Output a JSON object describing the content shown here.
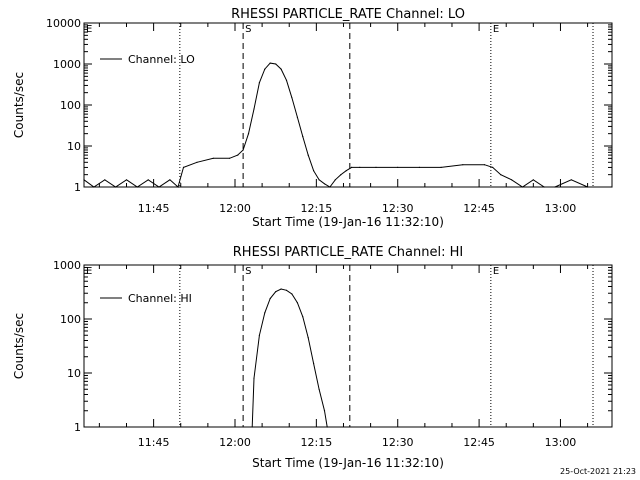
{
  "footer_timestamp": "25-Oct-2021 21:23",
  "chart_data": [
    {
      "type": "line",
      "title": "RHESSI PARTICLE_RATE Channel: LO",
      "xlabel": "Start Time (19-Jan-16 11:32:10)",
      "ylabel": "Counts/sec",
      "yscale": "log",
      "xlim": [
        "11:32:10",
        "13:09:30"
      ],
      "ylim": [
        1,
        10000
      ],
      "x_ticks": [
        "11:45",
        "12:00",
        "12:15",
        "12:30",
        "12:45",
        "13:00"
      ],
      "y_ticks": [
        "1",
        "10",
        "100",
        "1000",
        "10000"
      ],
      "legend": {
        "label": "Channel: LO",
        "position": "top-left"
      },
      "markers": [
        {
          "label": "E",
          "time": "11:32:10",
          "style": "dotted"
        },
        {
          "label": "",
          "time": "11:49:50",
          "style": "dotted"
        },
        {
          "label": "S",
          "time": "12:01:30",
          "style": "dashed"
        },
        {
          "label": "",
          "time": "12:21:10",
          "style": "dashed"
        },
        {
          "label": "E",
          "time": "12:47:10",
          "style": "dotted"
        },
        {
          "label": "",
          "time": "13:06:00",
          "style": "dotted"
        }
      ],
      "series": [
        {
          "name": "Channel: LO",
          "x": [
            "11:32:10",
            "11:34:00",
            "11:36:00",
            "11:38:00",
            "11:40:00",
            "11:42:00",
            "11:44:00",
            "11:46:00",
            "11:48:00",
            "11:49:30",
            "11:50:30",
            "11:53:00",
            "11:56:00",
            "11:59:00",
            "12:00:30",
            "12:01:30",
            "12:02:30",
            "12:03:30",
            "12:04:30",
            "12:05:30",
            "12:06:30",
            "12:07:30",
            "12:08:30",
            "12:09:30",
            "12:10:30",
            "12:11:30",
            "12:12:30",
            "12:13:30",
            "12:14:30",
            "12:15:30",
            "12:16:30",
            "12:17:30",
            "12:18:30",
            "12:19:30",
            "12:20:30",
            "12:21:30",
            "12:23:00",
            "12:26:00",
            "12:30:00",
            "12:34:00",
            "12:38:00",
            "12:42:00",
            "12:46:00",
            "12:47:30",
            "12:49:00",
            "12:51:00",
            "12:53:00",
            "12:55:00",
            "12:57:00",
            "12:59:00",
            "13:02:00",
            "13:05:00",
            "13:09:30"
          ],
          "values": [
            1.5,
            1,
            1.5,
            1,
            1.5,
            1,
            1.5,
            1,
            1.5,
            1,
            3,
            4,
            5,
            5,
            6,
            8,
            20,
            80,
            350,
            750,
            1050,
            1000,
            750,
            400,
            150,
            50,
            17,
            6,
            2.5,
            1.5,
            1.2,
            1,
            1.5,
            2,
            2.5,
            3,
            3,
            3,
            3,
            3,
            3,
            3.5,
            3.5,
            3,
            2,
            1.5,
            1,
            1.5,
            1,
            1,
            1.5,
            1,
            1
          ]
        }
      ]
    },
    {
      "type": "line",
      "title": "RHESSI PARTICLE_RATE Channel: HI",
      "xlabel": "Start Time (19-Jan-16 11:32:10)",
      "ylabel": "Counts/sec",
      "yscale": "log",
      "xlim": [
        "11:32:10",
        "13:09:30"
      ],
      "ylim": [
        1,
        1000
      ],
      "x_ticks": [
        "11:45",
        "12:00",
        "12:15",
        "12:30",
        "12:45",
        "13:00"
      ],
      "y_ticks": [
        "1",
        "10",
        "100",
        "1000"
      ],
      "legend": {
        "label": "Channel: HI",
        "position": "top-left"
      },
      "markers": [
        {
          "label": "E",
          "time": "11:32:10",
          "style": "dotted"
        },
        {
          "label": "",
          "time": "11:49:50",
          "style": "dotted"
        },
        {
          "label": "S",
          "time": "12:01:30",
          "style": "dashed"
        },
        {
          "label": "",
          "time": "12:21:10",
          "style": "dashed"
        },
        {
          "label": "E",
          "time": "12:47:10",
          "style": "dotted"
        },
        {
          "label": "",
          "time": "13:06:00",
          "style": "dotted"
        }
      ],
      "series": [
        {
          "name": "Channel: HI",
          "x": [
            "12:03:10",
            "12:03:30",
            "12:04:30",
            "12:05:30",
            "12:06:30",
            "12:07:30",
            "12:08:30",
            "12:09:30",
            "12:10:30",
            "12:11:30",
            "12:12:30",
            "12:13:30",
            "12:14:30",
            "12:15:30",
            "12:16:30",
            "12:17:00"
          ],
          "values": [
            1,
            8,
            50,
            130,
            240,
            320,
            360,
            340,
            290,
            200,
            110,
            45,
            15,
            5,
            2,
            1
          ]
        }
      ]
    }
  ]
}
